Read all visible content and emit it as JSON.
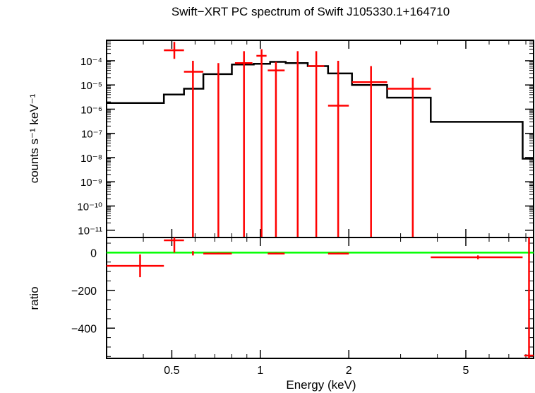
{
  "chart_data": [
    {
      "type": "scatter",
      "title": "Swift−XRT PC spectrum of Swift J105330.1+164710",
      "ylabel": "counts s⁻¹ keV⁻¹",
      "xlabel": "",
      "x_scale": "log",
      "y_scale": "log",
      "xlim": [
        0.3,
        8.5
      ],
      "ylim": [
        5e-12,
        0.0007
      ],
      "y_tick_labels": [
        "10⁻¹¹",
        "10⁻¹⁰",
        "10⁻⁹",
        "10⁻⁸",
        "10⁻⁷",
        "10⁻⁶",
        "10⁻⁵",
        "10⁻⁴"
      ],
      "y_tick_values": [
        1e-11,
        1e-10,
        1e-09,
        1e-08,
        1e-07,
        1e-06,
        1e-05,
        0.0001
      ],
      "series": [
        {
          "role": "data",
          "color": "#ff0000",
          "points": [
            {
              "x": 0.51,
              "xlo": 0.47,
              "xhi": 0.55,
              "y": 0.00027,
              "ylo": 0.00012,
              "yhi": 0.0006
            },
            {
              "x": 0.59,
              "xlo": 0.55,
              "xhi": 0.64,
              "y": 3.5e-05,
              "ylo": 5e-12,
              "yhi": 0.0001
            },
            {
              "x": 0.72,
              "xlo": 0.72,
              "xhi": 0.72,
              "y": 3e-05,
              "ylo": 5e-12,
              "yhi": 8e-05
            },
            {
              "x": 0.88,
              "xlo": 0.82,
              "xhi": 0.94,
              "y": 8e-05,
              "ylo": 5e-12,
              "yhi": 0.00025
            },
            {
              "x": 1.01,
              "xlo": 0.97,
              "xhi": 1.05,
              "y": 0.00016,
              "ylo": 5e-12,
              "yhi": 0.0003
            },
            {
              "x": 1.13,
              "xlo": 1.06,
              "xhi": 1.21,
              "y": 4e-05,
              "ylo": 5e-12,
              "yhi": 9e-05
            },
            {
              "x": 1.34,
              "xlo": 1.34,
              "xhi": 1.34,
              "y": 7e-05,
              "ylo": 5e-12,
              "yhi": 0.00025
            },
            {
              "x": 1.55,
              "xlo": 1.45,
              "xhi": 1.65,
              "y": 6e-05,
              "ylo": 5e-12,
              "yhi": 0.00025
            },
            {
              "x": 1.84,
              "xlo": 1.7,
              "xhi": 2.0,
              "y": 1.4e-06,
              "ylo": 5e-12,
              "yhi": 0.0001
            },
            {
              "x": 2.38,
              "xlo": 2.05,
              "xhi": 2.7,
              "y": 1.3e-05,
              "ylo": 5e-12,
              "yhi": 6e-05
            },
            {
              "x": 3.3,
              "xlo": 2.7,
              "xhi": 3.8,
              "y": 7e-06,
              "ylo": 5e-12,
              "yhi": 2e-05
            }
          ]
        },
        {
          "role": "model",
          "color": "#000000",
          "steps": [
            {
              "xlo": 0.3,
              "xhi": 0.47,
              "y": 1.8e-06
            },
            {
              "xlo": 0.47,
              "xhi": 0.55,
              "y": 4e-06
            },
            {
              "xlo": 0.55,
              "xhi": 0.64,
              "y": 7e-06
            },
            {
              "xlo": 0.64,
              "xhi": 0.8,
              "y": 2.8e-05
            },
            {
              "xlo": 0.8,
              "xhi": 0.95,
              "y": 7e-05
            },
            {
              "xlo": 0.95,
              "xhi": 1.08,
              "y": 7.5e-05
            },
            {
              "xlo": 1.08,
              "xhi": 1.22,
              "y": 9e-05
            },
            {
              "xlo": 1.22,
              "xhi": 1.45,
              "y": 8e-05
            },
            {
              "xlo": 1.45,
              "xhi": 1.7,
              "y": 6e-05
            },
            {
              "xlo": 1.7,
              "xhi": 2.05,
              "y": 3e-05
            },
            {
              "xlo": 2.05,
              "xhi": 2.7,
              "y": 1e-05
            },
            {
              "xlo": 2.7,
              "xhi": 3.8,
              "y": 3e-06
            },
            {
              "xlo": 3.8,
              "xhi": 7.8,
              "y": 3e-07
            },
            {
              "xlo": 7.8,
              "xhi": 8.5,
              "y": 9e-09
            }
          ]
        }
      ]
    },
    {
      "type": "scatter",
      "title": "",
      "xlabel": "Energy (keV)",
      "ylabel": "ratio",
      "x_scale": "log",
      "xlim": [
        0.3,
        8.5
      ],
      "ylim": [
        -560,
        80
      ],
      "x_tick_labels": [
        "0.5",
        "1",
        "2",
        "5"
      ],
      "x_tick_values": [
        0.5,
        1,
        2,
        5
      ],
      "y_tick_labels": [
        "0",
        "−200",
        "−400"
      ],
      "y_tick_values": [
        0,
        -200,
        -400
      ],
      "reference_line": {
        "y": 0,
        "color": "#00ff00"
      },
      "series": [
        {
          "role": "ratio",
          "color": "#ff0000",
          "points": [
            {
              "x": 0.39,
              "xlo": 0.3,
              "xhi": 0.47,
              "y": -70,
              "ylo": -130,
              "yhi": -10
            },
            {
              "x": 0.51,
              "xlo": 0.47,
              "xhi": 0.55,
              "y": 65,
              "ylo": 0,
              "yhi": 80
            },
            {
              "x": 0.59,
              "xlo": 0.59,
              "xhi": 0.59,
              "y": 0,
              "ylo": -15,
              "yhi": 8
            },
            {
              "x": 0.72,
              "xlo": 0.64,
              "xhi": 0.8,
              "y": -5,
              "ylo": -8,
              "yhi": 0
            },
            {
              "x": 1.13,
              "xlo": 1.06,
              "xhi": 1.21,
              "y": -5,
              "ylo": -8,
              "yhi": 0
            },
            {
              "x": 1.84,
              "xlo": 1.7,
              "xhi": 2.0,
              "y": -5,
              "ylo": -8,
              "yhi": 0
            },
            {
              "x": 5.5,
              "xlo": 3.8,
              "xhi": 7.8,
              "y": -25,
              "ylo": -35,
              "yhi": -15
            },
            {
              "x": 8.2,
              "xlo": 7.9,
              "xhi": 8.5,
              "y": -545,
              "ylo": -560,
              "yhi": 80
            }
          ]
        }
      ]
    }
  ]
}
